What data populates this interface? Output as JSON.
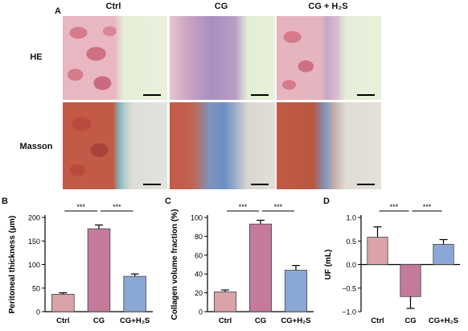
{
  "panel_a": {
    "label": "A",
    "columns": [
      "Ctrl",
      "CG",
      "CG + H₂S"
    ],
    "rows": [
      "HE",
      "Masson"
    ]
  },
  "chart_data": [
    {
      "panel": "B",
      "type": "bar",
      "categories": [
        "Ctrl",
        "CG",
        "CG+H₂S"
      ],
      "values": [
        37,
        176,
        75
      ],
      "errors": [
        3,
        8,
        5
      ],
      "ylabel": "Peritoneal thickness (μm)",
      "ylim": [
        0,
        200
      ],
      "yticks": [
        0,
        50,
        100,
        150,
        200
      ],
      "significance": [
        "***",
        "***"
      ],
      "colors": [
        "#d9a3a8",
        "#c47a9b",
        "#8aa8d6"
      ]
    },
    {
      "panel": "C",
      "type": "bar",
      "categories": [
        "Ctrl",
        "CG",
        "CG+H₂S"
      ],
      "values": [
        21,
        93,
        44
      ],
      "errors": [
        2,
        4,
        5
      ],
      "ylabel": "Collagen volume fraction (%)",
      "ylim": [
        0,
        100
      ],
      "yticks": [
        0,
        20,
        40,
        60,
        80,
        100
      ],
      "significance": [
        "***",
        "***"
      ],
      "colors": [
        "#d9a3a8",
        "#c47a9b",
        "#8aa8d6"
      ]
    },
    {
      "panel": "D",
      "type": "bar",
      "categories": [
        "Ctrl",
        "CG",
        "CG+H₂S"
      ],
      "values": [
        0.58,
        -0.68,
        0.43
      ],
      "errors": [
        0.22,
        0.25,
        0.1
      ],
      "ylabel": "UF (mL)",
      "ylim": [
        -1.0,
        1.0
      ],
      "yticks": [
        -1.0,
        -0.5,
        0.0,
        0.5,
        1.0
      ],
      "ytick_labels": [
        "−1.0",
        "−0.5",
        "0.0",
        "0.5",
        "1.0"
      ],
      "significance": [
        "***",
        "***"
      ],
      "colors": [
        "#d9a3a8",
        "#c47a9b",
        "#8aa8d6"
      ]
    }
  ]
}
